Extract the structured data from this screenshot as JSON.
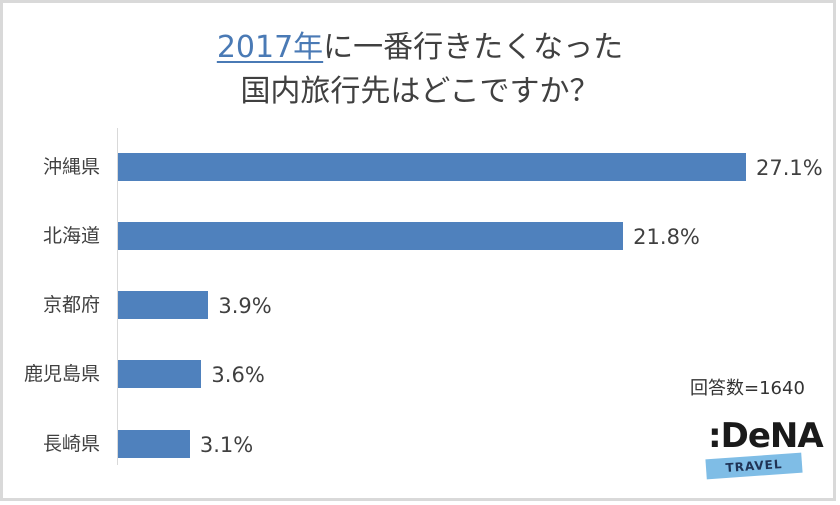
{
  "title": {
    "line1_highlight": "2017年",
    "line1_rest": "に一番行きたくなった",
    "line2": "国内旅行先はどこですか？",
    "highlight_color": "#4a7ab5"
  },
  "respondents_label": "回答数=1640",
  "logo": {
    "name": "DeNA",
    "prefix": ":",
    "subtitle": "TRAVEL",
    "band_color": "#7fbde6"
  },
  "bar_color": "#4f81bd",
  "chart_data": {
    "type": "bar",
    "orientation": "horizontal",
    "title": "2017年に一番行きたくなった国内旅行先はどこですか？",
    "categories": [
      "沖縄県",
      "北海道",
      "京都府",
      "鹿児島県",
      "長崎県"
    ],
    "values": [
      27.1,
      21.8,
      3.9,
      3.6,
      3.1
    ],
    "value_labels": [
      "27.1%",
      "21.8%",
      "3.9%",
      "3.6%",
      "3.1%"
    ],
    "unit": "%",
    "xlabel": "",
    "ylabel": "",
    "grid": false,
    "legend": null,
    "annotation": "回答数=1640"
  }
}
